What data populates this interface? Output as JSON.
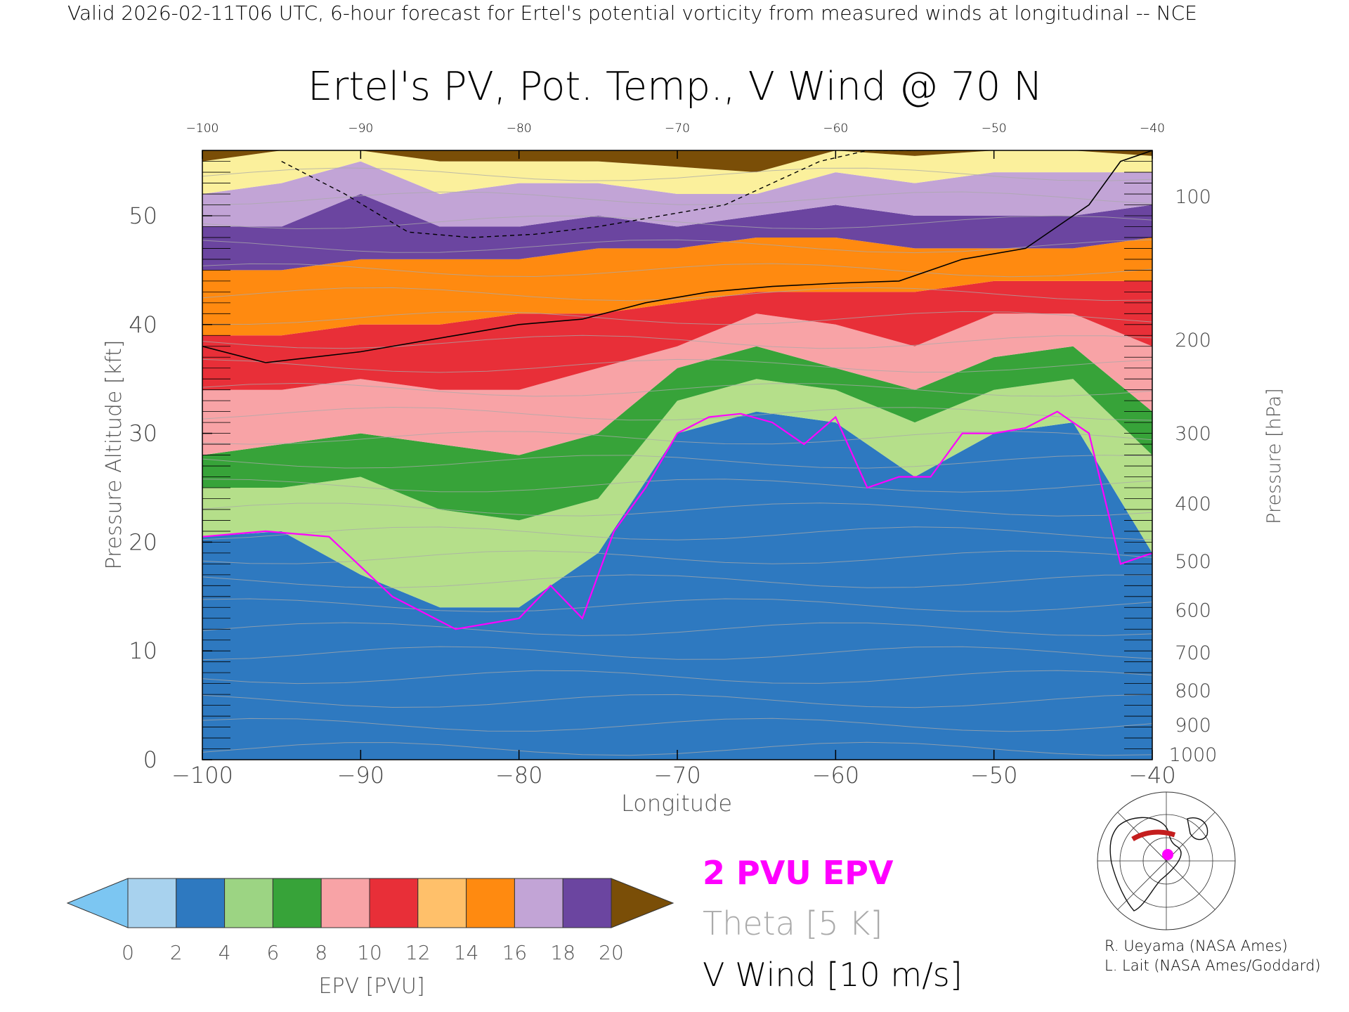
{
  "header": {
    "valid_text": "Valid 2026-02-11T06 UTC, 6-hour forecast for Ertel's potential vorticity from measured winds at longitudinal -- NCE"
  },
  "chart_data": {
    "type": "heatmap",
    "title": "Ertel's PV, Pot. Temp., V Wind @ 70 N",
    "xlabel": "Longitude",
    "ylabel_left": "Pressure Altitude [kft]",
    "ylabel_right": "Pressure [hPa]",
    "xlim": [
      -100,
      -40
    ],
    "ylim": [
      0,
      56
    ],
    "x_ticks": [
      -100,
      -90,
      -80,
      -70,
      -60,
      -50,
      -40
    ],
    "x_tick_labels": [
      "−100",
      "−90",
      "−80",
      "−70",
      "−60",
      "−50",
      "−40"
    ],
    "top_tick_labels": [
      "−100",
      "−90",
      "−80",
      "−70",
      "−60",
      "−50",
      "−40"
    ],
    "y_ticks": [
      0,
      10,
      20,
      30,
      40,
      50
    ],
    "y_tick_labels": [
      "0",
      "10",
      "20",
      "30",
      "40",
      "50"
    ],
    "pressure_ticks": [
      {
        "hpa": 100,
        "label": "100"
      },
      {
        "hpa": 200,
        "label": "200"
      },
      {
        "hpa": 300,
        "label": "300"
      },
      {
        "hpa": 400,
        "label": "400"
      },
      {
        "hpa": 500,
        "label": "500"
      },
      {
        "hpa": 600,
        "label": "600"
      },
      {
        "hpa": 700,
        "label": "700"
      },
      {
        "hpa": 800,
        "label": "800"
      },
      {
        "hpa": 900,
        "label": "900"
      },
      {
        "hpa": 1000,
        "label": "1000"
      }
    ],
    "epv_2pvu_kft": {
      "x": [
        -100,
        -96,
        -92,
        -88,
        -84,
        -80,
        -78,
        -76,
        -74,
        -72,
        -70,
        -68,
        -66,
        -64,
        -62,
        -60,
        -58,
        -56,
        -54,
        -52,
        -50,
        -48,
        -46,
        -44,
        -42,
        -40
      ],
      "y": [
        20.5,
        21,
        20.5,
        15,
        12,
        13,
        16,
        13,
        21,
        25,
        30,
        31.5,
        31.8,
        31,
        29,
        31.5,
        25,
        26,
        26,
        30,
        30,
        30.5,
        32,
        30,
        18,
        19
      ]
    },
    "pv_bands_kft": {
      "x": [
        -100,
        -95,
        -90,
        -85,
        -80,
        -75,
        -70,
        -65,
        -60,
        -55,
        -50,
        -45,
        -40
      ],
      "boundaries": [
        [
          20.5,
          21,
          17,
          14,
          14,
          19,
          30,
          32,
          31,
          26,
          30,
          31,
          19
        ],
        [
          25,
          25,
          26,
          23,
          22,
          24,
          33,
          35,
          34,
          31,
          34,
          35,
          28
        ],
        [
          28,
          29,
          30,
          29,
          28,
          30,
          36,
          38,
          36,
          34,
          37,
          38,
          32
        ],
        [
          34,
          34,
          35,
          34,
          34,
          36,
          38,
          41,
          40,
          38,
          41,
          41,
          38
        ],
        [
          39,
          39,
          40,
          40,
          41,
          41,
          42,
          43,
          43,
          43,
          44,
          44,
          44
        ],
        [
          45,
          45,
          46,
          46,
          46,
          47,
          47,
          48,
          48,
          47,
          47,
          47,
          48
        ],
        [
          49,
          49,
          52,
          49,
          49,
          50,
          49,
          50,
          51,
          50,
          50,
          50,
          51
        ],
        [
          52,
          53,
          55,
          52,
          53,
          53,
          52,
          52,
          54,
          53,
          54,
          54,
          54
        ],
        [
          55,
          56,
          56,
          55,
          55,
          55,
          54.5,
          54,
          56,
          55.5,
          56,
          56,
          55.5
        ]
      ],
      "fill_names": [
        "blue",
        "light-green",
        "green",
        "pink",
        "red",
        "orange",
        "purple",
        "light-purple",
        "yellow",
        "brown"
      ]
    },
    "tropopause_zero_contour_kft": {
      "x": [
        -100,
        -96,
        -90,
        -84,
        -80,
        -76,
        -72,
        -68,
        -64,
        -60,
        -56,
        -52,
        -48,
        -44,
        -42,
        -40
      ],
      "y": [
        38,
        36.5,
        37.5,
        39,
        40,
        40.5,
        42,
        43,
        43.5,
        43.8,
        44,
        46,
        47,
        51,
        55,
        56
      ]
    },
    "dashed_contour_kft": {
      "x": [
        -95,
        -91,
        -87,
        -83,
        -79,
        -75,
        -71,
        -67,
        -64,
        -61,
        -58,
        -55
      ],
      "y": [
        55,
        52,
        48.5,
        48,
        48.3,
        49,
        50,
        51,
        53,
        55,
        56,
        56
      ]
    },
    "legend": [
      {
        "text": "2 PVU EPV",
        "color": "#ff00ff"
      },
      {
        "text": "Theta [5 K]",
        "color": "#aaaaaa"
      },
      {
        "text": "V Wind [10 m/s]",
        "color": "#000000"
      }
    ],
    "colorbar": {
      "label": "EPV [PVU]",
      "ticks": [
        "0",
        "2",
        "4",
        "6",
        "8",
        "10",
        "12",
        "14",
        "16",
        "18",
        "20"
      ],
      "colors": [
        "#a8d2ee",
        "#2e79c0",
        "#9cd483",
        "#37a339",
        "#f8a3a6",
        "#e82f38",
        "#ffc06a",
        "#ff8a10",
        "#c2a4d6",
        "#6b45a0",
        "#fbf09c"
      ],
      "under_color": "#7cc6f2",
      "over_color": "#7a4e07"
    },
    "grid": false
  },
  "credits": {
    "line1": "R. Ueyama (NASA Ames)",
    "line2": "L. Lait (NASA Ames/Goddard)"
  },
  "colors": {
    "epv_contour": "#ff00ff",
    "theta_contour": "#aaaaaa",
    "wind_contour": "#000000",
    "cross_section_marker": "#c41e1e",
    "location_dot": "#ff00ff"
  },
  "icons": {
    "inset_map": "north-polar-map-icon"
  }
}
